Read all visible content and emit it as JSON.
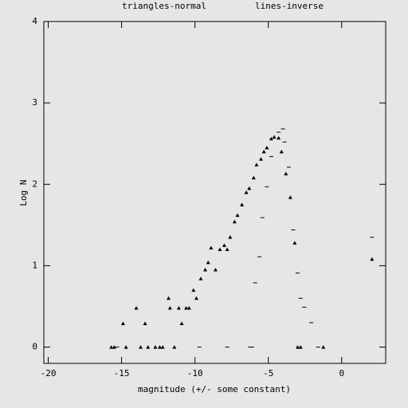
{
  "chart_data": {
    "type": "scatter",
    "title_left": "triangles-normal",
    "title_right": "lines-inverse",
    "xlabel": "magnitude (+/- some constant)",
    "ylabel": "Log N",
    "xlim": [
      -20.3,
      3.0
    ],
    "ylim": [
      -0.2,
      4
    ],
    "xticks": [
      -20,
      -15,
      -10,
      -5,
      0
    ],
    "yticks": [
      0,
      1,
      2,
      3,
      4
    ],
    "series": [
      {
        "name": "triangles-normal",
        "marker": "triangle",
        "color": "#000000",
        "x": [
          -15.7,
          -15.5,
          -14.9,
          -14.7,
          -14.0,
          -13.7,
          -13.4,
          -13.2,
          -12.7,
          -12.4,
          -12.2,
          -11.8,
          -11.7,
          -11.4,
          -11.1,
          -10.9,
          -10.6,
          -10.4,
          -10.1,
          -9.9,
          -9.6,
          -9.3,
          -9.1,
          -8.9,
          -8.6,
          -8.3,
          -8.0,
          -7.8,
          -7.6,
          -7.3,
          -7.1,
          -6.8,
          -6.5,
          -6.3,
          -6.0,
          -5.8,
          -5.5,
          -5.3,
          -5.1,
          -4.8,
          -4.6,
          -4.3,
          -4.1,
          -3.8,
          -3.5,
          -3.2,
          -3.0,
          -2.8,
          -1.25,
          2.07
        ],
        "values": [
          0,
          0,
          0.29,
          0,
          0.48,
          0,
          0.29,
          0,
          0,
          0,
          0,
          0.6,
          0.48,
          0,
          0.48,
          0.29,
          0.48,
          0.48,
          0.7,
          0.6,
          0.84,
          0.95,
          1.04,
          1.22,
          0.95,
          1.2,
          1.25,
          1.2,
          1.35,
          1.54,
          1.62,
          1.75,
          1.9,
          1.95,
          2.08,
          2.24,
          2.31,
          2.4,
          2.45,
          2.56,
          2.58,
          2.57,
          2.4,
          2.13,
          1.84,
          1.28,
          0,
          0,
          0,
          1.08
        ]
      },
      {
        "name": "lines-inverse",
        "marker": "dash",
        "color": "#000000",
        "x": [
          -15.3,
          -9.7,
          -7.8,
          -6.25,
          -6.1,
          -5.9,
          -5.6,
          -5.4,
          -5.1,
          -4.8,
          -4.3,
          -4.0,
          -3.9,
          -3.6,
          -3.3,
          -3.0,
          -2.8,
          -2.55,
          -2.07,
          -1.6,
          2.07
        ],
        "values": [
          0,
          0,
          0,
          0,
          0,
          0.79,
          1.11,
          1.59,
          1.97,
          2.34,
          2.64,
          2.68,
          2.52,
          2.21,
          1.44,
          0.91,
          0.6,
          0.49,
          0.3,
          0,
          1.35
        ]
      }
    ]
  }
}
